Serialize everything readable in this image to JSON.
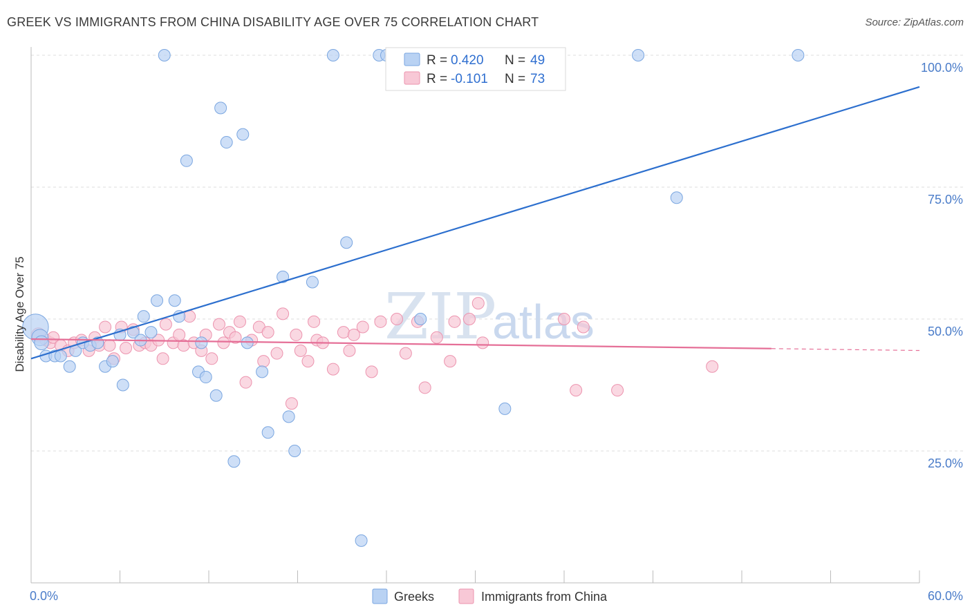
{
  "title": "GREEK VS IMMIGRANTS FROM CHINA DISABILITY AGE OVER 75 CORRELATION CHART",
  "source": "Source: ZipAtlas.com",
  "watermark": {
    "zip": "ZIP",
    "atlas": "atlas"
  },
  "colors": {
    "greeks_fill": "#b9d2f3",
    "greeks_stroke": "#7aa6e0",
    "greeks_line": "#2c6fce",
    "china_fill": "#f8c8d6",
    "china_stroke": "#ec93ae",
    "china_line": "#e56f97",
    "tick_text": "#4a7cc9",
    "grid": "#dddddd"
  },
  "legend": {
    "r_label": "R =",
    "n_label": "N =",
    "rows": [
      {
        "r": "0.420",
        "n": "49"
      },
      {
        "r": "-0.101",
        "n": "73"
      }
    ]
  },
  "chart_data": {
    "type": "scatter",
    "title": "GREEK VS IMMIGRANTS FROM CHINA DISABILITY AGE OVER 75 CORRELATION CHART",
    "xlabel": "",
    "ylabel": "Disability Age Over 75",
    "xlim": [
      0,
      60
    ],
    "ylim": [
      0,
      100
    ],
    "x_tick_labels": [
      "0.0%",
      "60.0%"
    ],
    "y_tick_labels": [
      "100.0%",
      "75.0%",
      "50.0%",
      "25.0%"
    ],
    "y_ticks": [
      100,
      75,
      50,
      25
    ],
    "grid": true,
    "legend_position": "top-center",
    "series": [
      {
        "name": "Greeks",
        "r": 0.42,
        "n": 49,
        "trend": {
          "x0": 0,
          "y0": 42.5,
          "x1": 60,
          "y1": 94
        },
        "points": [
          [
            0.3,
            48.5,
            22
          ],
          [
            0.6,
            46.5,
            14
          ],
          [
            0.7,
            45.5,
            12
          ],
          [
            1.0,
            43.0,
            10
          ],
          [
            1.6,
            43.0,
            10
          ],
          [
            2.0,
            43.0,
            10
          ],
          [
            2.6,
            41.0,
            10
          ],
          [
            3.0,
            44.0,
            10
          ],
          [
            3.5,
            45.5,
            10
          ],
          [
            4.0,
            45.0,
            10
          ],
          [
            4.5,
            45.5,
            10
          ],
          [
            5.0,
            41.0,
            10
          ],
          [
            5.5,
            42.0,
            10
          ],
          [
            6.0,
            47.0,
            10
          ],
          [
            6.2,
            37.5,
            10
          ],
          [
            6.9,
            47.5,
            10
          ],
          [
            7.4,
            46.0,
            10
          ],
          [
            7.6,
            50.5,
            10
          ],
          [
            8.1,
            47.5,
            10
          ],
          [
            8.5,
            53.5,
            10
          ],
          [
            9.0,
            100,
            10
          ],
          [
            9.7,
            53.5,
            10
          ],
          [
            10.0,
            50.5,
            10
          ],
          [
            10.5,
            80.0,
            10
          ],
          [
            11.3,
            40.0,
            10
          ],
          [
            11.5,
            45.5,
            10
          ],
          [
            11.8,
            39.0,
            10
          ],
          [
            12.5,
            35.5,
            10
          ],
          [
            12.8,
            90.0,
            10
          ],
          [
            13.2,
            83.5,
            10
          ],
          [
            13.7,
            23.0,
            10
          ],
          [
            14.3,
            85.0,
            10
          ],
          [
            14.6,
            45.5,
            10
          ],
          [
            15.6,
            40.0,
            10
          ],
          [
            16.0,
            28.5,
            10
          ],
          [
            17.0,
            58.0,
            10
          ],
          [
            17.4,
            31.5,
            10
          ],
          [
            17.8,
            25.0,
            10
          ],
          [
            19.0,
            57.0,
            10
          ],
          [
            20.4,
            100,
            10
          ],
          [
            21.3,
            64.5,
            10
          ],
          [
            22.3,
            8.0,
            10
          ],
          [
            23.5,
            100,
            10
          ],
          [
            24.0,
            100,
            10
          ],
          [
            25.5,
            100,
            10
          ],
          [
            26.3,
            50.0,
            10
          ],
          [
            32.0,
            33.0,
            10
          ],
          [
            41.0,
            100,
            10
          ],
          [
            43.6,
            73.0,
            10
          ],
          [
            51.8,
            100,
            10
          ]
        ]
      },
      {
        "name": "Immigrants from China",
        "r": -0.101,
        "n": 73,
        "trend": {
          "x0": 0,
          "y0": 46.2,
          "x1": 50,
          "y1": 44.4,
          "dash_to_x": 60
        },
        "points": [
          [
            0.5,
            47.0,
            12
          ],
          [
            1.0,
            46.0,
            10
          ],
          [
            1.3,
            45.5,
            10
          ],
          [
            1.5,
            46.5,
            10
          ],
          [
            2.0,
            45.0,
            10
          ],
          [
            2.5,
            44.0,
            10
          ],
          [
            2.9,
            45.5,
            10
          ],
          [
            3.4,
            46.0,
            10
          ],
          [
            3.9,
            44.0,
            10
          ],
          [
            4.3,
            46.5,
            10
          ],
          [
            4.6,
            45.0,
            10
          ],
          [
            5.0,
            48.5,
            10
          ],
          [
            5.3,
            45.0,
            10
          ],
          [
            5.6,
            42.5,
            10
          ],
          [
            6.1,
            48.5,
            10
          ],
          [
            6.4,
            44.5,
            10
          ],
          [
            6.9,
            48.0,
            10
          ],
          [
            7.3,
            45.0,
            10
          ],
          [
            7.7,
            45.5,
            10
          ],
          [
            8.1,
            45.0,
            10
          ],
          [
            8.6,
            46.0,
            10
          ],
          [
            8.9,
            42.5,
            10
          ],
          [
            9.1,
            49.0,
            10
          ],
          [
            9.6,
            45.5,
            10
          ],
          [
            10.0,
            47.0,
            10
          ],
          [
            10.3,
            45.0,
            10
          ],
          [
            10.7,
            50.5,
            10
          ],
          [
            11.0,
            45.5,
            10
          ],
          [
            11.5,
            44.0,
            10
          ],
          [
            11.8,
            47.0,
            10
          ],
          [
            12.2,
            42.5,
            10
          ],
          [
            12.7,
            49.0,
            10
          ],
          [
            13.0,
            45.5,
            10
          ],
          [
            13.4,
            47.5,
            10
          ],
          [
            13.8,
            46.5,
            10
          ],
          [
            14.1,
            49.5,
            10
          ],
          [
            14.5,
            38.0,
            10
          ],
          [
            14.9,
            46.0,
            10
          ],
          [
            15.4,
            48.5,
            10
          ],
          [
            15.7,
            42.0,
            10
          ],
          [
            16.0,
            47.5,
            10
          ],
          [
            16.6,
            43.5,
            10
          ],
          [
            17.0,
            51.0,
            10
          ],
          [
            17.6,
            34.0,
            10
          ],
          [
            17.9,
            47.0,
            10
          ],
          [
            18.2,
            44.0,
            10
          ],
          [
            18.7,
            42.0,
            10
          ],
          [
            19.1,
            49.5,
            10
          ],
          [
            19.3,
            46.0,
            10
          ],
          [
            19.7,
            45.5,
            10
          ],
          [
            20.4,
            40.5,
            10
          ],
          [
            21.1,
            47.5,
            10
          ],
          [
            21.5,
            44.0,
            10
          ],
          [
            21.8,
            47.0,
            10
          ],
          [
            22.4,
            48.5,
            10
          ],
          [
            23.0,
            40.0,
            10
          ],
          [
            23.6,
            49.5,
            10
          ],
          [
            24.7,
            50.0,
            10
          ],
          [
            25.3,
            43.5,
            10
          ],
          [
            26.1,
            49.5,
            10
          ],
          [
            26.6,
            37.0,
            10
          ],
          [
            27.4,
            46.5,
            10
          ],
          [
            28.3,
            42.0,
            10
          ],
          [
            28.6,
            49.5,
            10
          ],
          [
            29.6,
            50.0,
            10
          ],
          [
            30.2,
            53.0,
            10
          ],
          [
            30.5,
            45.5,
            10
          ],
          [
            36.0,
            50.0,
            10
          ],
          [
            36.8,
            36.5,
            10
          ],
          [
            37.3,
            48.5,
            10
          ],
          [
            39.6,
            36.5,
            10
          ],
          [
            46.0,
            41.0,
            10
          ]
        ]
      }
    ]
  },
  "bottom_legend": [
    {
      "label": "Greeks"
    },
    {
      "label": "Immigrants from China"
    }
  ]
}
